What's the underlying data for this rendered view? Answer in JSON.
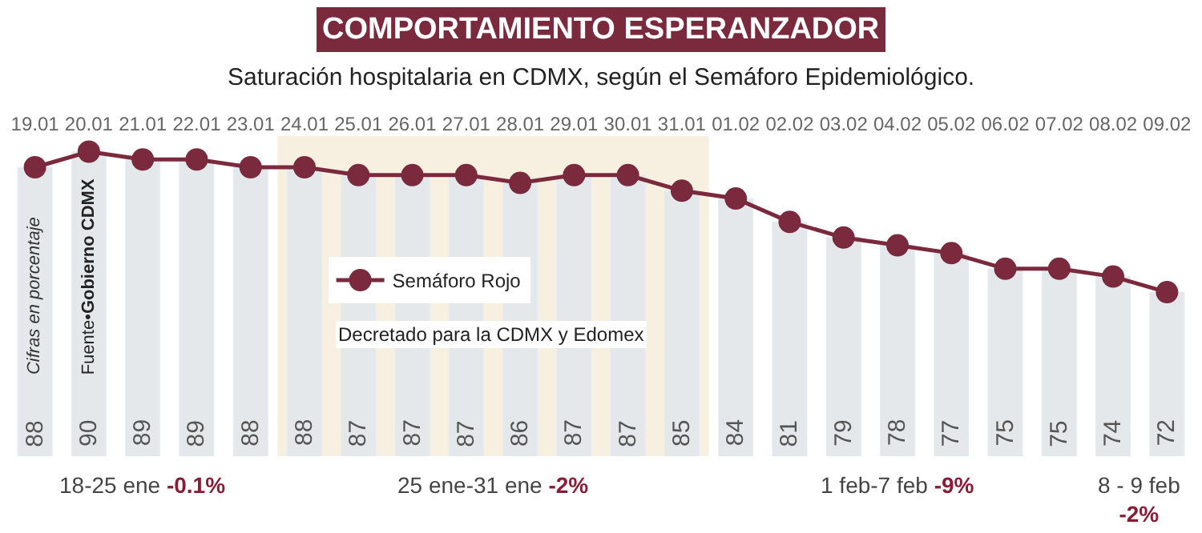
{
  "chart_data": {
    "type": "bar",
    "title": "COMPORTAMIENTO ESPERANZADOR",
    "subtitle": "Saturación hospitalaria en CDMX, según el Semáforo Epidemiológico.",
    "categories": [
      "19.01",
      "20.01",
      "21.01",
      "22.01",
      "23.01",
      "24.01",
      "25.01",
      "26.01",
      "27.01",
      "28.01",
      "29.01",
      "30.01",
      "31.01",
      "01.02",
      "02.02",
      "03.02",
      "04.02",
      "05.02",
      "06.02",
      "07.02",
      "08.02",
      "09.02"
    ],
    "series": [
      {
        "color": "#e4e8eb",
        "values": [
          88,
          90,
          89,
          89,
          88,
          88,
          87,
          87,
          87,
          86,
          87,
          87,
          85,
          84,
          81,
          79,
          78,
          77,
          75,
          75,
          74,
          72
        ],
        "value_labels": [
          "88",
          "90",
          "89",
          "89",
          "88",
          "88",
          "87",
          "87",
          "87",
          "86",
          "87",
          "87",
          "85",
          "84",
          "81",
          "79",
          "78",
          "77",
          "75",
          "75",
          "74",
          "72"
        ]
      },
      {
        "type": "line",
        "name": "Semáforo Rojo",
        "color": "#7a2a3c",
        "values": [
          88,
          90,
          89,
          89,
          88,
          88,
          87,
          87,
          87,
          86,
          87,
          87,
          85,
          84,
          81,
          79,
          78,
          77,
          75,
          75,
          74,
          72
        ]
      }
    ],
    "ylim": [
      51,
      92
    ],
    "tick_labels": "x",
    "marker": "circle",
    "line_style": "solid",
    "legend": "center",
    "grid": false,
    "bands": [
      {
        "axis": "x",
        "from": "24.01",
        "to": "31.01",
        "color": "#f7efdf"
      }
    ],
    "annotations": [
      "Cifras en porcentaje",
      "Fuente•Gobierno CDMX",
      "Decretado para la CDMX y Edomex",
      "18-25 ene -0.1%",
      "25 ene-31 ene -2%",
      "1 feb-7 feb -9%",
      "8 - 9 feb -2%"
    ]
  }
}
